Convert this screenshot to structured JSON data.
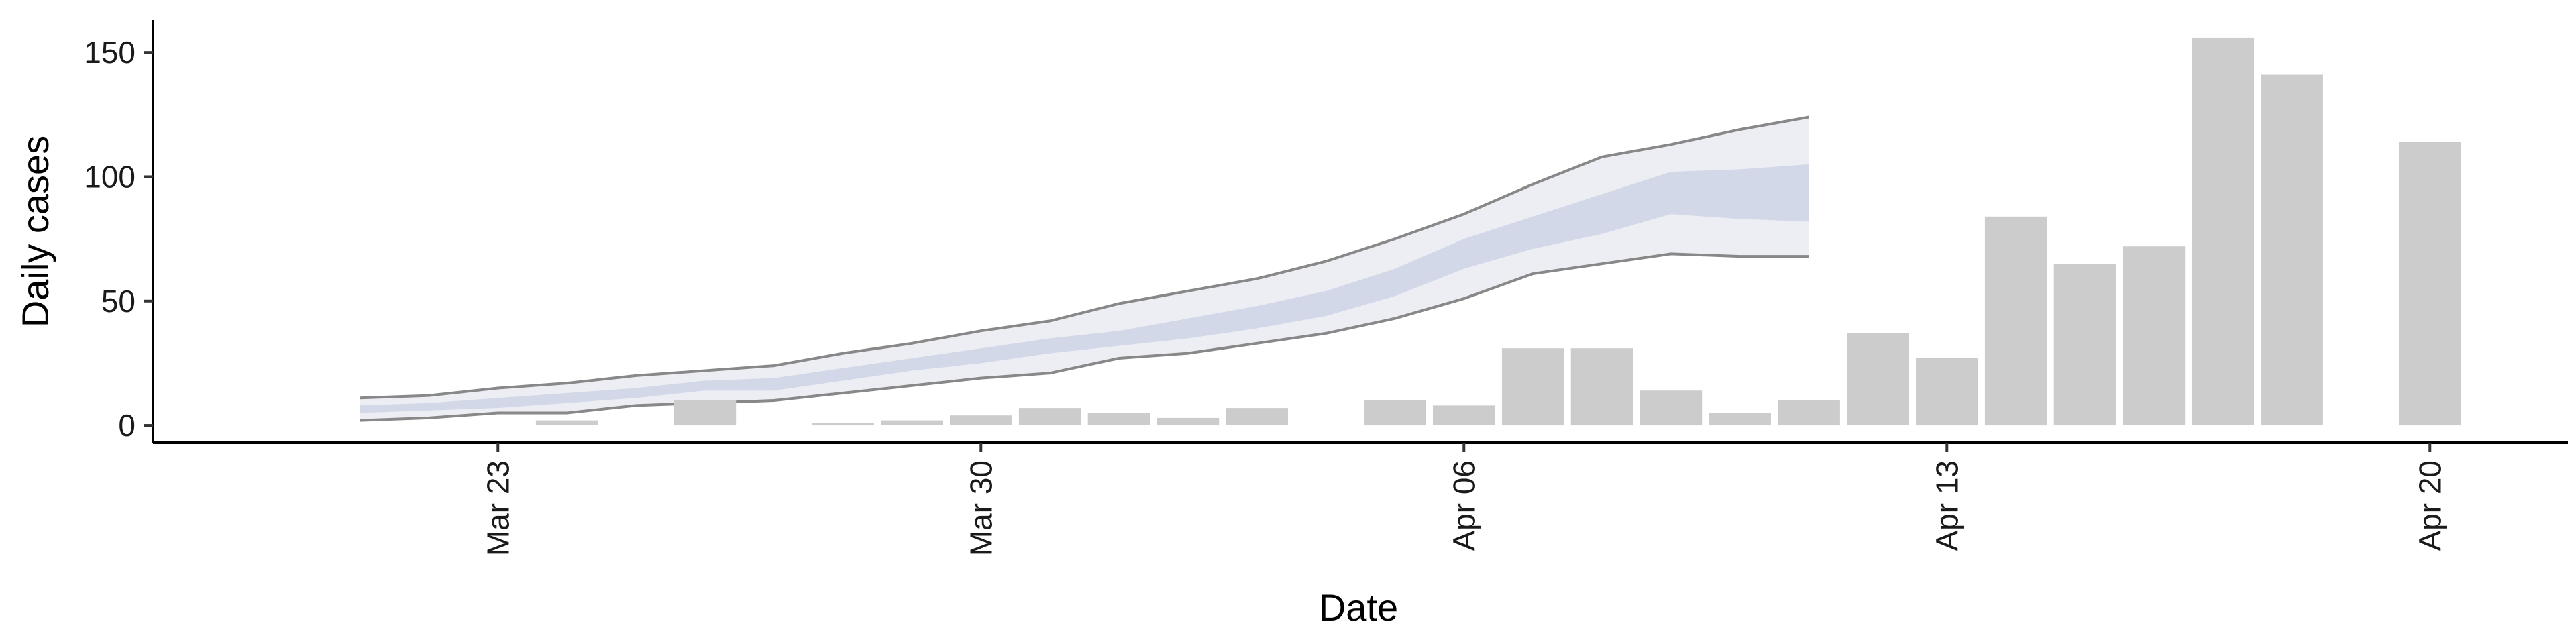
{
  "chart_data": {
    "type": "bar",
    "title": "",
    "xlabel": "Date",
    "ylabel": "Daily cases",
    "ylim": [
      -7,
      163
    ],
    "xlim": [
      "2020-03-18",
      "2020-04-22"
    ],
    "grid": false,
    "x_ticks": [
      {
        "date": "2020-03-23",
        "label": "Mar 23"
      },
      {
        "date": "2020-03-30",
        "label": "Mar 30"
      },
      {
        "date": "2020-04-06",
        "label": "Apr 06"
      },
      {
        "date": "2020-04-13",
        "label": "Apr 13"
      },
      {
        "date": "2020-04-20",
        "label": "Apr 20"
      }
    ],
    "y_ticks": [
      0,
      50,
      100,
      150
    ],
    "bars": {
      "color": "#cccccc",
      "data": [
        {
          "date": "2020-03-24",
          "value": 2
        },
        {
          "date": "2020-03-26",
          "value": 10
        },
        {
          "date": "2020-03-28",
          "value": 1
        },
        {
          "date": "2020-03-29",
          "value": 2
        },
        {
          "date": "2020-03-30",
          "value": 4
        },
        {
          "date": "2020-03-31",
          "value": 7
        },
        {
          "date": "2020-04-01",
          "value": 5
        },
        {
          "date": "2020-04-02",
          "value": 3
        },
        {
          "date": "2020-04-03",
          "value": 7
        },
        {
          "date": "2020-04-05",
          "value": 10
        },
        {
          "date": "2020-04-06",
          "value": 8
        },
        {
          "date": "2020-04-07",
          "value": 31
        },
        {
          "date": "2020-04-08",
          "value": 31
        },
        {
          "date": "2020-04-09",
          "value": 14
        },
        {
          "date": "2020-04-10",
          "value": 5
        },
        {
          "date": "2020-04-11",
          "value": 10
        },
        {
          "date": "2020-04-12",
          "value": 37
        },
        {
          "date": "2020-04-13",
          "value": 27
        },
        {
          "date": "2020-04-14",
          "value": 84
        },
        {
          "date": "2020-04-15",
          "value": 65
        },
        {
          "date": "2020-04-16",
          "value": 72
        },
        {
          "date": "2020-04-17",
          "value": 156
        },
        {
          "date": "2020-04-18",
          "value": 141
        },
        {
          "date": "2020-04-20",
          "value": 114
        }
      ]
    },
    "forecast_band": {
      "outer_color": "#eceef4",
      "inner_color": "#d3d8e8",
      "outer_line_color": "#888888",
      "dates": [
        "2020-03-21",
        "2020-03-22",
        "2020-03-23",
        "2020-03-24",
        "2020-03-25",
        "2020-03-26",
        "2020-03-27",
        "2020-03-28",
        "2020-03-29",
        "2020-03-30",
        "2020-03-31",
        "2020-04-01",
        "2020-04-02",
        "2020-04-03",
        "2020-04-04",
        "2020-04-05",
        "2020-04-06",
        "2020-04-07",
        "2020-04-08",
        "2020-04-09",
        "2020-04-10",
        "2020-04-11"
      ],
      "outer_lower": [
        2,
        3,
        5,
        5,
        8,
        9,
        10,
        13,
        16,
        19,
        21,
        27,
        29,
        33,
        37,
        43,
        51,
        61,
        65,
        69,
        68,
        68
      ],
      "outer_upper": [
        11,
        12,
        15,
        17,
        20,
        22,
        24,
        29,
        33,
        38,
        42,
        49,
        54,
        59,
        66,
        75,
        85,
        97,
        108,
        113,
        119,
        124
      ],
      "inner_lower": [
        5,
        6,
        7,
        9,
        11,
        14,
        14,
        18,
        22,
        25,
        29,
        32,
        35,
        39,
        44,
        52,
        63,
        71,
        77,
        85,
        83,
        82
      ],
      "inner_upper": [
        8,
        9,
        11,
        13,
        15,
        18,
        19,
        23,
        27,
        31,
        35,
        38,
        43,
        48,
        54,
        63,
        75,
        84,
        93,
        102,
        103,
        105
      ]
    }
  }
}
